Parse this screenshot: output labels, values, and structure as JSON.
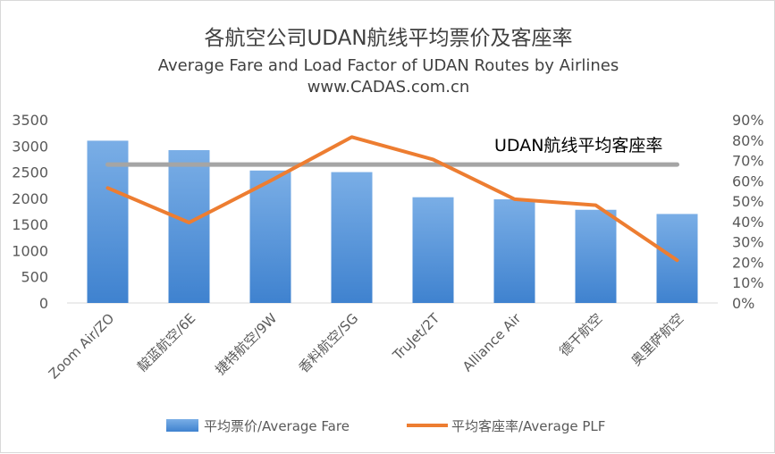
{
  "titles": {
    "zh": "各航空公司UDAN航线平均票价及客座率",
    "en": "Average Fare and Load Factor of UDAN Routes by Airlines",
    "url": "www.CADAS.com.cn"
  },
  "colors": {
    "bar_top": "#7aaee6",
    "bar_bottom": "#3f82cf",
    "line": "#ed7d31",
    "avg_line": "#a5a5a5"
  },
  "chart_data": {
    "type": "bar",
    "categories": [
      "Zoom Air/ZO",
      "靛蓝航空/6E",
      "捷特航空/9W",
      "香料航空/SG",
      "TruJet/2T",
      "Alliance Air",
      "德干航空",
      "奥里萨航空"
    ],
    "series": [
      {
        "name": "平均票价/Average Fare",
        "type": "bar",
        "axis": "left",
        "values": [
          3100,
          2920,
          2530,
          2500,
          2020,
          1980,
          1780,
          1700
        ]
      },
      {
        "name": "平均客座率/Average PLF",
        "type": "line",
        "axis": "right",
        "values": [
          56.5,
          39.5,
          60,
          81.5,
          70.5,
          51,
          48,
          21
        ]
      }
    ],
    "reference_line": {
      "label": "UDAN航线平均客座率",
      "value": 68,
      "axis": "right"
    },
    "y_left": {
      "range": [
        0,
        3500
      ],
      "ticks": [
        "0",
        "500",
        "1000",
        "1500",
        "2000",
        "2500",
        "3000",
        "3500"
      ]
    },
    "y_right": {
      "range": [
        0,
        90
      ],
      "ticks": [
        "0%",
        "10%",
        "20%",
        "30%",
        "40%",
        "50%",
        "60%",
        "70%",
        "80%",
        "90%"
      ]
    },
    "grid": false,
    "legend": "bottom"
  }
}
